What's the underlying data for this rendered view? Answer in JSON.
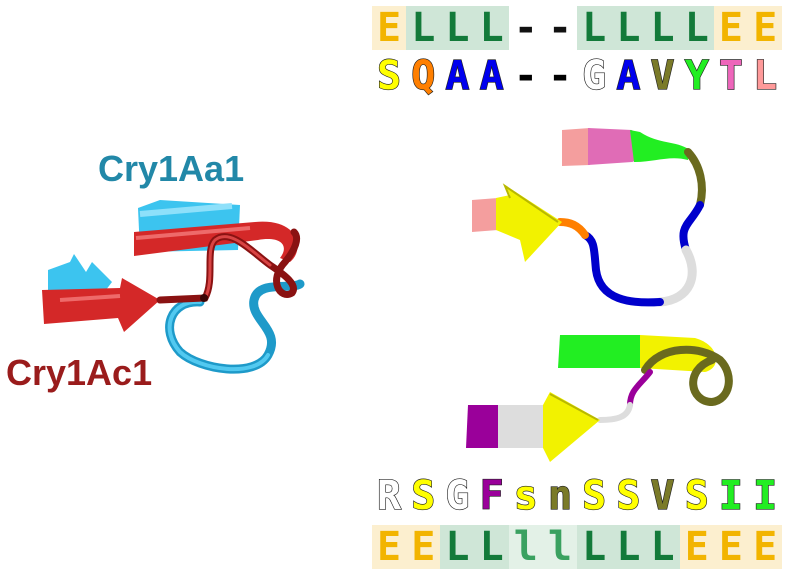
{
  "labels": {
    "cry1aa1": "Cry1Aa1",
    "cry1ac1": "Cry1Ac1"
  },
  "colors": {
    "cry1aa1": "#2288a8",
    "cry1ac1": "#9a1c1c",
    "extended_bg": "#fcefcf",
    "loop_bg": "#cfe6d7",
    "loop_light_bg": "#e3f1e7",
    "extended_fg": "#f2b400",
    "loop_fg": "#137a3a",
    "loop_light_fg": "#3aa160"
  },
  "top_alignment": {
    "structure": [
      {
        "ch": "E",
        "kind": "extended"
      },
      {
        "ch": "L",
        "kind": "loop"
      },
      {
        "ch": "L",
        "kind": "loop"
      },
      {
        "ch": "L",
        "kind": "loop"
      },
      {
        "ch": "-",
        "kind": "gap"
      },
      {
        "ch": "-",
        "kind": "gap"
      },
      {
        "ch": "L",
        "kind": "loop"
      },
      {
        "ch": "L",
        "kind": "loop"
      },
      {
        "ch": "L",
        "kind": "loop"
      },
      {
        "ch": "L",
        "kind": "loop"
      },
      {
        "ch": "E",
        "kind": "extended"
      },
      {
        "ch": "E",
        "kind": "extended"
      }
    ],
    "sequence": [
      {
        "ch": "S",
        "color": "#ffff00"
      },
      {
        "ch": "Q",
        "color": "#ff7f00"
      },
      {
        "ch": "A",
        "color": "#0000ee"
      },
      {
        "ch": "A",
        "color": "#0000ee"
      },
      {
        "ch": "-",
        "color": "#000000"
      },
      {
        "ch": "-",
        "color": "#000000"
      },
      {
        "ch": "G",
        "color": "#ffffff"
      },
      {
        "ch": "A",
        "color": "#0000ee"
      },
      {
        "ch": "V",
        "color": "#7a7a28"
      },
      {
        "ch": "Y",
        "color": "#22ee22"
      },
      {
        "ch": "T",
        "color": "#ee66bb"
      },
      {
        "ch": "L",
        "color": "#ff9a9a"
      }
    ]
  },
  "bottom_alignment": {
    "sequence": [
      {
        "ch": "R",
        "color": "#ffffff"
      },
      {
        "ch": "S",
        "color": "#ffff00"
      },
      {
        "ch": "G",
        "color": "#ffffff"
      },
      {
        "ch": "F",
        "color": "#9a009a"
      },
      {
        "ch": "s",
        "color": "#ffff00"
      },
      {
        "ch": "n",
        "color": "#7a7a28"
      },
      {
        "ch": "S",
        "color": "#ffff00"
      },
      {
        "ch": "S",
        "color": "#ffff00"
      },
      {
        "ch": "V",
        "color": "#7a7a28"
      },
      {
        "ch": "S",
        "color": "#ffff00"
      },
      {
        "ch": "I",
        "color": "#22ee22"
      },
      {
        "ch": "I",
        "color": "#22ee22"
      }
    ],
    "structure": [
      {
        "ch": "E",
        "kind": "extended"
      },
      {
        "ch": "E",
        "kind": "extended"
      },
      {
        "ch": "L",
        "kind": "loop"
      },
      {
        "ch": "L",
        "kind": "loop"
      },
      {
        "ch": "l",
        "kind": "loop_light"
      },
      {
        "ch": "l",
        "kind": "loop_light"
      },
      {
        "ch": "L",
        "kind": "loop"
      },
      {
        "ch": "L",
        "kind": "loop"
      },
      {
        "ch": "L",
        "kind": "loop"
      },
      {
        "ch": "E",
        "kind": "extended"
      },
      {
        "ch": "E",
        "kind": "extended"
      },
      {
        "ch": "E",
        "kind": "extended"
      }
    ]
  }
}
